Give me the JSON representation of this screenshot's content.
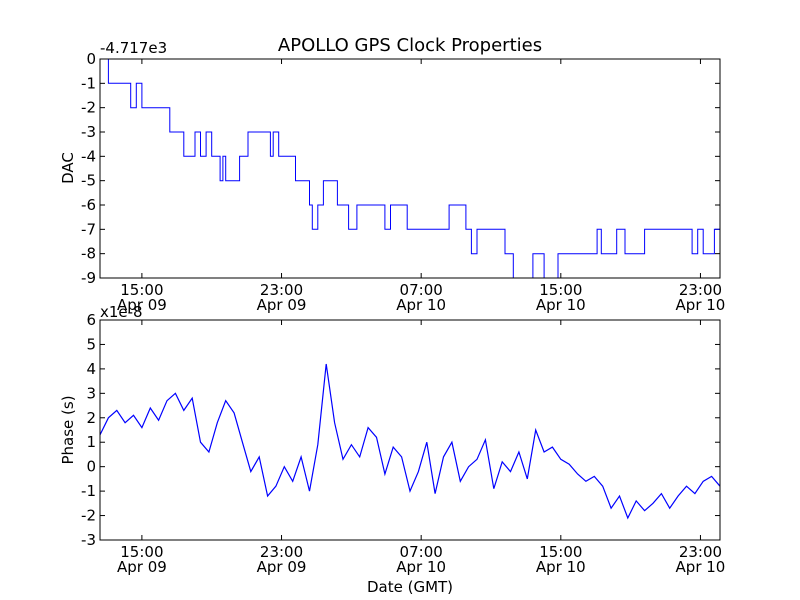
{
  "chart_data": [
    {
      "type": "line",
      "title": "APOLLO GPS Clock Properties",
      "xlabel": "",
      "ylabel": "DAC",
      "offset_label": "-4.717e3",
      "ylim": [
        -9,
        0
      ],
      "yticks": [
        "0",
        "-1",
        "-2",
        "-3",
        "-4",
        "-5",
        "-6",
        "-7",
        "-8",
        "-9"
      ],
      "ytick_values": [
        0,
        -1,
        -2,
        -3,
        -4,
        -5,
        -6,
        -7,
        -8,
        -9
      ],
      "xlim_hours": [
        11,
        33.2
      ],
      "xticks": [
        {
          "hour": 12.5,
          "time": "15:00",
          "date": "Apr 09"
        },
        {
          "hour": 17.5,
          "time": "23:00",
          "date": "Apr 09"
        },
        {
          "hour": 22.5,
          "time": "07:00",
          "date": "Apr 10"
        },
        {
          "hour": 27.5,
          "time": "15:00",
          "date": "Apr 10"
        },
        {
          "hour": 32.5,
          "time": "23:00",
          "date": "Apr 10"
        }
      ],
      "series": [
        {
          "name": "DAC",
          "color": "#0000ff",
          "step": true,
          "x": [
            11.0,
            11.3,
            12.1,
            12.3,
            12.5,
            12.6,
            13.5,
            14.0,
            14.4,
            14.6,
            14.8,
            15.0,
            15.2,
            15.3,
            15.4,
            15.5,
            16.0,
            16.1,
            16.3,
            16.5,
            17.1,
            17.2,
            17.4,
            17.8,
            18.0,
            18.5,
            18.6,
            18.8,
            19.0,
            19.5,
            19.9,
            20.2,
            21.2,
            21.4,
            21.8,
            22.0,
            23.0,
            23.5,
            24.1,
            24.3,
            24.5,
            25.0,
            25.5,
            25.8,
            26.5,
            26.9,
            27.4,
            27.5,
            28.8,
            28.95,
            29.5,
            29.8,
            30.5,
            30.9,
            32.0,
            32.2,
            32.4,
            32.6,
            33.0,
            33.2
          ],
          "y": [
            0,
            -1,
            -2,
            -1,
            -2,
            -2,
            -3,
            -4,
            -3,
            -4,
            -3,
            -4,
            -4,
            -5,
            -4,
            -5,
            -4,
            -4,
            -3,
            -3,
            -4,
            -3,
            -4,
            -4,
            -5,
            -6,
            -7,
            -6,
            -5,
            -6,
            -7,
            -6,
            -7,
            -6,
            -6,
            -7,
            -7,
            -6,
            -7,
            -8,
            -7,
            -7,
            -8,
            -9,
            -8,
            -9,
            -8,
            -8,
            -7,
            -8,
            -7,
            -8,
            -7,
            -7,
            -7,
            -8,
            -7,
            -8,
            -7,
            -7
          ]
        }
      ]
    },
    {
      "type": "line",
      "title": "",
      "xlabel": "Date (GMT)",
      "ylabel": "Phase (s)",
      "offset_label": "x1e-8",
      "ylim": [
        -3,
        6
      ],
      "yticks": [
        "6",
        "5",
        "4",
        "3",
        "2",
        "1",
        "0",
        "-1",
        "-2",
        "-3"
      ],
      "ytick_values": [
        6,
        5,
        4,
        3,
        2,
        1,
        0,
        -1,
        -2,
        -3
      ],
      "xlim_hours": [
        11,
        33.2
      ],
      "xticks": [
        {
          "hour": 12.5,
          "time": "15:00",
          "date": "Apr 09"
        },
        {
          "hour": 17.5,
          "time": "23:00",
          "date": "Apr 09"
        },
        {
          "hour": 22.5,
          "time": "07:00",
          "date": "Apr 10"
        },
        {
          "hour": 27.5,
          "time": "15:00",
          "date": "Apr 10"
        },
        {
          "hour": 32.5,
          "time": "23:00",
          "date": "Apr 10"
        }
      ],
      "series": [
        {
          "name": "Phase",
          "color": "#0000ff",
          "step": false,
          "x": [
            11.0,
            11.3,
            11.6,
            11.9,
            12.2,
            12.5,
            12.8,
            13.1,
            13.4,
            13.7,
            14.0,
            14.3,
            14.6,
            14.9,
            15.2,
            15.5,
            15.8,
            16.1,
            16.4,
            16.7,
            17.0,
            17.3,
            17.6,
            17.9,
            18.2,
            18.5,
            18.8,
            19.1,
            19.4,
            19.7,
            20.0,
            20.3,
            20.6,
            20.9,
            21.2,
            21.5,
            21.8,
            22.1,
            22.4,
            22.7,
            23.0,
            23.3,
            23.6,
            23.9,
            24.2,
            24.5,
            24.8,
            25.1,
            25.4,
            25.7,
            26.0,
            26.3,
            26.6,
            26.9,
            27.2,
            27.5,
            27.8,
            28.1,
            28.4,
            28.7,
            29.0,
            29.3,
            29.6,
            29.9,
            30.2,
            30.5,
            30.8,
            31.1,
            31.4,
            31.7,
            32.0,
            32.3,
            32.6,
            32.9,
            33.2
          ],
          "y": [
            1.3,
            2.0,
            2.3,
            1.8,
            2.1,
            1.6,
            2.4,
            1.9,
            2.7,
            3.0,
            2.3,
            2.8,
            1.0,
            0.6,
            1.8,
            2.7,
            2.2,
            1.0,
            -0.2,
            0.4,
            -1.2,
            -0.8,
            0.0,
            -0.6,
            0.4,
            -1.0,
            0.9,
            4.2,
            1.8,
            0.3,
            0.9,
            0.4,
            1.6,
            1.2,
            -0.3,
            0.8,
            0.4,
            -1.0,
            -0.2,
            1.0,
            -1.1,
            0.4,
            1.0,
            -0.6,
            0.0,
            0.3,
            1.1,
            -0.9,
            0.2,
            -0.2,
            0.6,
            -0.5,
            1.5,
            0.6,
            0.8,
            0.3,
            0.1,
            -0.3,
            -0.6,
            -0.4,
            -0.8,
            -1.7,
            -1.2,
            -2.1,
            -1.4,
            -1.8,
            -1.5,
            -1.1,
            -1.7,
            -1.2,
            -0.8,
            -1.1,
            -0.6,
            -0.4,
            -0.8
          ]
        }
      ]
    }
  ]
}
